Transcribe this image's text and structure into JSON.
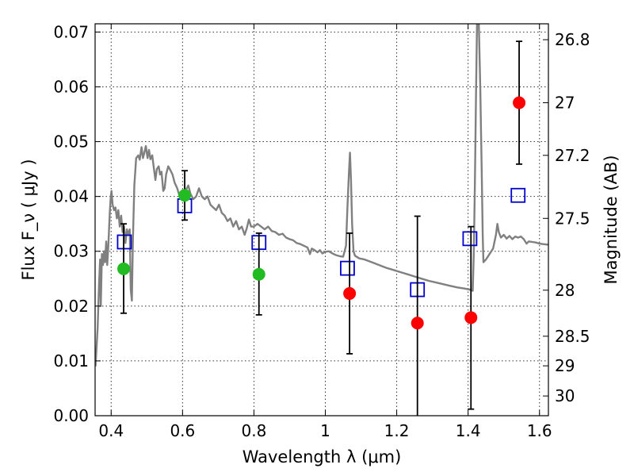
{
  "chart_data": {
    "type": "scatter",
    "xlabel": "Wavelength λ (μm)",
    "ylabel": "Flux F_ν ( μJy )",
    "ylabel_right": "Magnitude (AB)",
    "xlim": [
      0.355,
      1.625
    ],
    "ylim": [
      0.0,
      0.0715
    ],
    "x_ticks": [
      0.4,
      0.6,
      0.8,
      1.0,
      1.2,
      1.4,
      1.6
    ],
    "x_tick_labels": [
      "0.4",
      "0.6",
      "0.8",
      "1",
      "1.2",
      "1.4",
      "1.6"
    ],
    "y_ticks": [
      0.0,
      0.01,
      0.02,
      0.03,
      0.04,
      0.05,
      0.06,
      0.07
    ],
    "y_tick_labels": [
      "0.00",
      "0.01",
      "0.02",
      "0.03",
      "0.04",
      "0.05",
      "0.06",
      "0.07"
    ],
    "right_ticks": [
      {
        "flux": 0.0686,
        "label": "26.8"
      },
      {
        "flux": 0.0571,
        "label": "27"
      },
      {
        "flux": 0.0475,
        "label": "27.2"
      },
      {
        "flux": 0.036,
        "label": "27.5"
      },
      {
        "flux": 0.0229,
        "label": "28"
      },
      {
        "flux": 0.0145,
        "label": "28.5"
      },
      {
        "flux": 0.0091,
        "label": "29"
      },
      {
        "flux": 0.0036,
        "label": "30"
      }
    ],
    "grid": true,
    "series": [
      {
        "kind": "points",
        "color": "#22bb22",
        "points": [
          {
            "x": 0.435,
            "y": 0.0268,
            "yerr_low": 0.0187,
            "yerr_high": 0.035
          },
          {
            "x": 0.606,
            "y": 0.0402,
            "yerr_low": 0.0357,
            "yerr_high": 0.0447
          },
          {
            "x": 0.814,
            "y": 0.0258,
            "yerr_low": 0.0184,
            "yerr_high": 0.0333
          }
        ]
      },
      {
        "kind": "points",
        "color": "#ff0000",
        "points": [
          {
            "x": 1.068,
            "y": 0.0223,
            "yerr_low": 0.0113,
            "yerr_high": 0.0333
          },
          {
            "x": 1.258,
            "y": 0.0169,
            "yerr_low": -0.0025,
            "yerr_high": 0.0364
          },
          {
            "x": 1.408,
            "y": 0.0179,
            "yerr_low": 0.0012,
            "yerr_high": 0.0345
          },
          {
            "x": 1.543,
            "y": 0.0571,
            "yerr_low": 0.0459,
            "yerr_high": 0.0683
          }
        ]
      },
      {
        "kind": "model-bands",
        "color": "#0000cc",
        "points": [
          {
            "x": 0.437,
            "y": 0.0317
          },
          {
            "x": 0.606,
            "y": 0.0383
          },
          {
            "x": 0.814,
            "y": 0.0316
          },
          {
            "x": 1.062,
            "y": 0.0269
          },
          {
            "x": 1.258,
            "y": 0.023
          },
          {
            "x": 1.405,
            "y": 0.0323
          },
          {
            "x": 1.54,
            "y": 0.0402
          }
        ]
      },
      {
        "kind": "spectrum",
        "color": "#808080",
        "points": [
          [
            0.356,
            0.009
          ],
          [
            0.362,
            0.016
          ],
          [
            0.366,
            0.024
          ],
          [
            0.369,
            0.0285
          ],
          [
            0.371,
            0.02
          ],
          [
            0.374,
            0.0295
          ],
          [
            0.377,
            0.0275
          ],
          [
            0.38,
            0.03
          ],
          [
            0.383,
            0.028
          ],
          [
            0.386,
            0.0318
          ],
          [
            0.389,
            0.0275
          ],
          [
            0.392,
            0.031
          ],
          [
            0.396,
            0.037
          ],
          [
            0.399,
            0.04
          ],
          [
            0.401,
            0.041
          ],
          [
            0.404,
            0.0385
          ],
          [
            0.408,
            0.0375
          ],
          [
            0.412,
            0.038
          ],
          [
            0.416,
            0.036
          ],
          [
            0.42,
            0.0375
          ],
          [
            0.424,
            0.0345
          ],
          [
            0.428,
            0.0365
          ],
          [
            0.432,
            0.0335
          ],
          [
            0.436,
            0.0345
          ],
          [
            0.44,
            0.0315
          ],
          [
            0.444,
            0.034
          ],
          [
            0.448,
            0.033
          ],
          [
            0.452,
            0.034
          ],
          [
            0.455,
            0.023
          ],
          [
            0.458,
            0.021
          ],
          [
            0.461,
            0.032
          ],
          [
            0.465,
            0.042
          ],
          [
            0.47,
            0.047
          ],
          [
            0.476,
            0.0475
          ],
          [
            0.48,
            0.0467
          ],
          [
            0.485,
            0.049
          ],
          [
            0.489,
            0.047
          ],
          [
            0.493,
            0.048
          ],
          [
            0.497,
            0.0492
          ],
          [
            0.502,
            0.047
          ],
          [
            0.506,
            0.0485
          ],
          [
            0.51,
            0.0468
          ],
          [
            0.515,
            0.0475
          ],
          [
            0.52,
            0.045
          ],
          [
            0.524,
            0.043
          ],
          [
            0.528,
            0.045
          ],
          [
            0.533,
            0.0455
          ],
          [
            0.537,
            0.044
          ],
          [
            0.541,
            0.0445
          ],
          [
            0.546,
            0.041
          ],
          [
            0.55,
            0.0415
          ],
          [
            0.554,
            0.044
          ],
          [
            0.56,
            0.0455
          ],
          [
            0.566,
            0.0448
          ],
          [
            0.572,
            0.044
          ],
          [
            0.578,
            0.0425
          ],
          [
            0.585,
            0.0415
          ],
          [
            0.592,
            0.04
          ],
          [
            0.6,
            0.0395
          ],
          [
            0.608,
            0.041
          ],
          [
            0.616,
            0.042
          ],
          [
            0.622,
            0.0405
          ],
          [
            0.63,
            0.0395
          ],
          [
            0.638,
            0.04
          ],
          [
            0.646,
            0.0415
          ],
          [
            0.654,
            0.04
          ],
          [
            0.662,
            0.0395
          ],
          [
            0.67,
            0.04
          ],
          [
            0.678,
            0.0385
          ],
          [
            0.686,
            0.038
          ],
          [
            0.694,
            0.0375
          ],
          [
            0.702,
            0.0385
          ],
          [
            0.71,
            0.037
          ],
          [
            0.718,
            0.0365
          ],
          [
            0.726,
            0.0355
          ],
          [
            0.734,
            0.036
          ],
          [
            0.742,
            0.0345
          ],
          [
            0.75,
            0.0355
          ],
          [
            0.758,
            0.034
          ],
          [
            0.766,
            0.0345
          ],
          [
            0.774,
            0.033
          ],
          [
            0.78,
            0.0342
          ],
          [
            0.786,
            0.0358
          ],
          [
            0.792,
            0.0345
          ],
          [
            0.8,
            0.0345
          ],
          [
            0.81,
            0.035
          ],
          [
            0.82,
            0.0345
          ],
          [
            0.83,
            0.034
          ],
          [
            0.84,
            0.0345
          ],
          [
            0.85,
            0.0337
          ],
          [
            0.86,
            0.0335
          ],
          [
            0.87,
            0.033
          ],
          [
            0.88,
            0.0332
          ],
          [
            0.89,
            0.0325
          ],
          [
            0.9,
            0.0322
          ],
          [
            0.91,
            0.032
          ],
          [
            0.92,
            0.0315
          ],
          [
            0.93,
            0.0313
          ],
          [
            0.94,
            0.031
          ],
          [
            0.95,
            0.0307
          ],
          [
            0.957,
            0.0295
          ],
          [
            0.962,
            0.0305
          ],
          [
            0.97,
            0.0302
          ],
          [
            0.978,
            0.0298
          ],
          [
            0.985,
            0.0302
          ],
          [
            0.992,
            0.0296
          ],
          [
            1.0,
            0.0299
          ],
          [
            1.01,
            0.03
          ],
          [
            1.02,
            0.0296
          ],
          [
            1.03,
            0.0293
          ],
          [
            1.04,
            0.0291
          ],
          [
            1.05,
            0.029
          ],
          [
            1.058,
            0.031
          ],
          [
            1.062,
            0.038
          ],
          [
            1.066,
            0.044
          ],
          [
            1.069,
            0.048
          ],
          [
            1.072,
            0.043
          ],
          [
            1.075,
            0.035
          ],
          [
            1.079,
            0.03
          ],
          [
            1.083,
            0.0292
          ],
          [
            1.095,
            0.0287
          ],
          [
            1.11,
            0.0285
          ],
          [
            1.13,
            0.028
          ],
          [
            1.15,
            0.0275
          ],
          [
            1.17,
            0.027
          ],
          [
            1.19,
            0.0266
          ],
          [
            1.21,
            0.0262
          ],
          [
            1.23,
            0.0258
          ],
          [
            1.25,
            0.0254
          ],
          [
            1.27,
            0.025
          ],
          [
            1.29,
            0.0246
          ],
          [
            1.31,
            0.0243
          ],
          [
            1.33,
            0.024
          ],
          [
            1.35,
            0.0237
          ],
          [
            1.37,
            0.0234
          ],
          [
            1.39,
            0.0232
          ],
          [
            1.405,
            0.023
          ],
          [
            1.413,
            0.0228
          ],
          [
            1.416,
            0.03
          ],
          [
            1.419,
            0.042
          ],
          [
            1.422,
            0.058
          ],
          [
            1.425,
            0.0715
          ],
          [
            1.43,
            0.0715
          ],
          [
            1.434,
            0.06
          ],
          [
            1.438,
            0.045
          ],
          [
            1.441,
            0.033
          ],
          [
            1.443,
            0.028
          ],
          [
            1.45,
            0.0285
          ],
          [
            1.46,
            0.0295
          ],
          [
            1.47,
            0.0305
          ],
          [
            1.478,
            0.033
          ],
          [
            1.482,
            0.035
          ],
          [
            1.486,
            0.0335
          ],
          [
            1.492,
            0.0325
          ],
          [
            1.5,
            0.033
          ],
          [
            1.508,
            0.0323
          ],
          [
            1.516,
            0.0328
          ],
          [
            1.524,
            0.0322
          ],
          [
            1.532,
            0.0327
          ],
          [
            1.54,
            0.0325
          ],
          [
            1.548,
            0.0327
          ],
          [
            1.556,
            0.0322
          ],
          [
            1.564,
            0.0314
          ],
          [
            1.57,
            0.0318
          ],
          [
            1.58,
            0.0317
          ],
          [
            1.59,
            0.0316
          ],
          [
            1.6,
            0.0314
          ],
          [
            1.61,
            0.0313
          ],
          [
            1.625,
            0.0312
          ]
        ]
      }
    ]
  }
}
